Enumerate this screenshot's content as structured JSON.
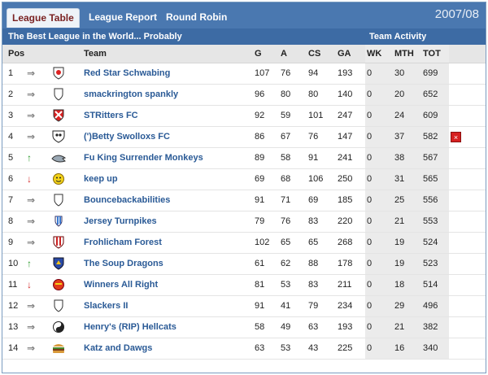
{
  "tabs": [
    {
      "label": "League Table",
      "active": true
    },
    {
      "label": "League Report",
      "active": false
    },
    {
      "label": "Round Robin",
      "active": false
    }
  ],
  "season": "2007/08",
  "subhead": {
    "title": "The Best League in the World... Probably",
    "activity": "Team Activity"
  },
  "columns": {
    "pos": "Pos",
    "team": "Team",
    "g": "G",
    "a": "A",
    "cs": "CS",
    "ga": "GA",
    "wk": "WK",
    "mth": "MTH",
    "tot": "TOT"
  },
  "colors": {
    "header_bar": "#4a78b0",
    "subhead_bar": "#3d6ba4",
    "link": "#2a5a96",
    "up": "#2a9a2a",
    "down": "#d42a2a"
  },
  "rows": [
    {
      "pos": "1",
      "move": "same",
      "crest": "red-star-crest-icon",
      "team": "Red Star Schwabing",
      "g": "107",
      "a": "76",
      "cs": "94",
      "ga": "193",
      "wk": "0",
      "mth": "30",
      "tot": "699"
    },
    {
      "pos": "2",
      "move": "same",
      "crest": "shield-crest-icon",
      "team": "smackrington spankly",
      "g": "96",
      "a": "80",
      "cs": "80",
      "ga": "140",
      "wk": "0",
      "mth": "20",
      "tot": "652"
    },
    {
      "pos": "3",
      "move": "same",
      "crest": "cross-crest-icon",
      "team": "STRitters FC",
      "g": "92",
      "a": "59",
      "cs": "101",
      "ga": "247",
      "wk": "0",
      "mth": "24",
      "tot": "609"
    },
    {
      "pos": "4",
      "move": "same",
      "crest": "skull-crest-icon",
      "team": "(')Betty Swolloxs FC",
      "g": "86",
      "a": "67",
      "cs": "76",
      "ga": "147",
      "wk": "0",
      "mth": "37",
      "tot": "582",
      "delete": true
    },
    {
      "pos": "5",
      "move": "up",
      "crest": "shark-crest-icon",
      "team": "Fu King Surrender Monkeys",
      "g": "89",
      "a": "58",
      "cs": "91",
      "ga": "241",
      "wk": "0",
      "mth": "38",
      "tot": "567"
    },
    {
      "pos": "6",
      "move": "down",
      "crest": "smiley-crest-icon",
      "team": "keep up",
      "g": "69",
      "a": "68",
      "cs": "106",
      "ga": "250",
      "wk": "0",
      "mth": "31",
      "tot": "565"
    },
    {
      "pos": "7",
      "move": "same",
      "crest": "shield-crest-icon",
      "team": "Bouncebackabilities",
      "g": "91",
      "a": "71",
      "cs": "69",
      "ga": "185",
      "wk": "0",
      "mth": "25",
      "tot": "556"
    },
    {
      "pos": "8",
      "move": "same",
      "crest": "blue-stripe-crest-icon",
      "team": "Jersey Turnpikes",
      "g": "79",
      "a": "76",
      "cs": "83",
      "ga": "220",
      "wk": "0",
      "mth": "21",
      "tot": "553"
    },
    {
      "pos": "9",
      "move": "same",
      "crest": "red-stripe-crest-icon",
      "team": "Frohlicham Forest",
      "g": "102",
      "a": "65",
      "cs": "65",
      "ga": "268",
      "wk": "0",
      "mth": "19",
      "tot": "524"
    },
    {
      "pos": "10",
      "move": "up",
      "crest": "dragon-crest-icon",
      "team": "The Soup Dragons",
      "g": "61",
      "a": "62",
      "cs": "88",
      "ga": "178",
      "wk": "0",
      "mth": "19",
      "tot": "523"
    },
    {
      "pos": "11",
      "move": "down",
      "crest": "red-ball-crest-icon",
      "team": "Winners All Right",
      "g": "81",
      "a": "53",
      "cs": "83",
      "ga": "211",
      "wk": "0",
      "mth": "18",
      "tot": "514"
    },
    {
      "pos": "12",
      "move": "same",
      "crest": "shield-crest-icon",
      "team": "Slackers II",
      "g": "91",
      "a": "41",
      "cs": "79",
      "ga": "234",
      "wk": "0",
      "mth": "29",
      "tot": "496"
    },
    {
      "pos": "13",
      "move": "same",
      "crest": "yin-yang-crest-icon",
      "team": "Henry's (RIP) Hellcats",
      "g": "58",
      "a": "49",
      "cs": "63",
      "ga": "193",
      "wk": "0",
      "mth": "21",
      "tot": "382"
    },
    {
      "pos": "14",
      "move": "same",
      "crest": "burger-crest-icon",
      "team": "Katz and Dawgs",
      "g": "63",
      "a": "53",
      "cs": "43",
      "ga": "225",
      "wk": "0",
      "mth": "16",
      "tot": "340"
    }
  ],
  "delete_label": "×"
}
